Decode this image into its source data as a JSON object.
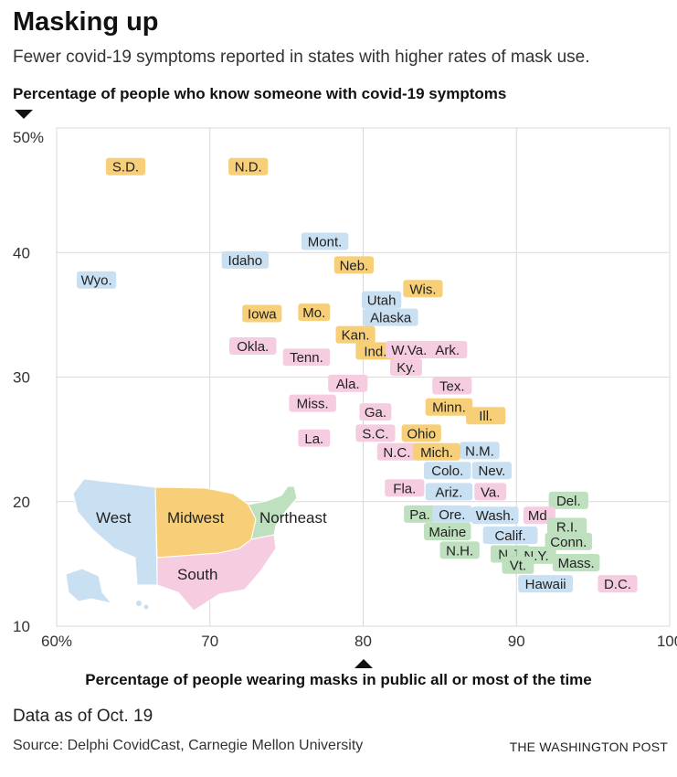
{
  "title": "Masking up",
  "subtitle": "Fewer covid-19 symptoms reported in states with higher rates of mask use.",
  "source": "Source: Delphi CovidCast, Carnegie Mellon University",
  "credit": "THE WASHINGTON POST",
  "note": "Data as of Oct. 19",
  "colors": {
    "West": "#c9dff2",
    "Midwest": "#f7cf79",
    "South": "#f6cde0",
    "Northeast": "#bfe0bf",
    "grid": "#d9d9d9",
    "axis": "#999999"
  },
  "chart_data": {
    "type": "scatter",
    "xlabel": "Percentage of people wearing masks in public all or most of the time",
    "ylabel": "Percentage of people who know someone with covid-19 symptoms",
    "xlim": [
      60,
      100
    ],
    "ylim": [
      10,
      50
    ],
    "xticks": [
      60,
      70,
      80,
      90,
      100
    ],
    "xtick_labels": [
      "60%",
      "70",
      "80",
      "90",
      "100"
    ],
    "yticks": [
      10,
      20,
      30,
      40,
      50
    ],
    "ytick_labels": [
      "10",
      "20",
      "30",
      "40",
      "50%"
    ],
    "grid": true,
    "regions": [
      "West",
      "Midwest",
      "South",
      "Northeast"
    ],
    "points": [
      {
        "label": "S.D.",
        "region": "Midwest",
        "x": 64.5,
        "y": 46.9
      },
      {
        "label": "N.D.",
        "region": "Midwest",
        "x": 72.5,
        "y": 46.9
      },
      {
        "label": "Mont.",
        "region": "West",
        "x": 77.5,
        "y": 40.9
      },
      {
        "label": "Idaho",
        "region": "West",
        "x": 72.3,
        "y": 39.4
      },
      {
        "label": "Neb.",
        "region": "Midwest",
        "x": 79.4,
        "y": 39.0
      },
      {
        "label": "Wyo.",
        "region": "West",
        "x": 62.6,
        "y": 37.8
      },
      {
        "label": "Wis.",
        "region": "Midwest",
        "x": 83.9,
        "y": 37.1
      },
      {
        "label": "Utah",
        "region": "West",
        "x": 81.2,
        "y": 36.2
      },
      {
        "label": "Iowa",
        "region": "Midwest",
        "x": 73.4,
        "y": 35.1
      },
      {
        "label": "Mo.",
        "region": "Midwest",
        "x": 76.8,
        "y": 35.2
      },
      {
        "label": "Alaska",
        "region": "West",
        "x": 81.8,
        "y": 34.8
      },
      {
        "label": "Kan.",
        "region": "Midwest",
        "x": 79.5,
        "y": 33.4
      },
      {
        "label": "Okla.",
        "region": "South",
        "x": 72.8,
        "y": 32.5
      },
      {
        "label": "Ind.",
        "region": "Midwest",
        "x": 80.8,
        "y": 32.1
      },
      {
        "label": "W.Va.",
        "region": "South",
        "x": 83.0,
        "y": 32.2
      },
      {
        "label": "Ark.",
        "region": "South",
        "x": 85.5,
        "y": 32.2
      },
      {
        "label": "Tenn.",
        "region": "South",
        "x": 76.3,
        "y": 31.6
      },
      {
        "label": "Ky.",
        "region": "South",
        "x": 82.8,
        "y": 30.8
      },
      {
        "label": "Ala.",
        "region": "South",
        "x": 79.0,
        "y": 29.5
      },
      {
        "label": "Tex.",
        "region": "South",
        "x": 85.8,
        "y": 29.3
      },
      {
        "label": "Miss.",
        "region": "South",
        "x": 76.7,
        "y": 27.9
      },
      {
        "label": "Minn.",
        "region": "Midwest",
        "x": 85.6,
        "y": 27.6
      },
      {
        "label": "Ga.",
        "region": "South",
        "x": 80.8,
        "y": 27.2
      },
      {
        "label": "Ill.",
        "region": "Midwest",
        "x": 88.0,
        "y": 26.9
      },
      {
        "label": "S.C.",
        "region": "South",
        "x": 80.8,
        "y": 25.5
      },
      {
        "label": "Ohio",
        "region": "Midwest",
        "x": 83.8,
        "y": 25.5
      },
      {
        "label": "La.",
        "region": "South",
        "x": 76.8,
        "y": 25.1
      },
      {
        "label": "N.M.",
        "region": "West",
        "x": 87.6,
        "y": 24.1
      },
      {
        "label": "N.C.",
        "region": "South",
        "x": 82.2,
        "y": 24.0
      },
      {
        "label": "Mich.",
        "region": "Midwest",
        "x": 84.8,
        "y": 24.0
      },
      {
        "label": "Colo.",
        "region": "West",
        "x": 85.5,
        "y": 22.5
      },
      {
        "label": "Nev.",
        "region": "West",
        "x": 88.4,
        "y": 22.5
      },
      {
        "label": "Fla.",
        "region": "South",
        "x": 82.7,
        "y": 21.1
      },
      {
        "label": "Ariz.",
        "region": "West",
        "x": 85.6,
        "y": 20.8
      },
      {
        "label": "Va.",
        "region": "South",
        "x": 88.3,
        "y": 20.8
      },
      {
        "label": "Del.",
        "region": "Northeast",
        "x": 93.4,
        "y": 20.1
      },
      {
        "label": "Pa.",
        "region": "Northeast",
        "x": 83.7,
        "y": 19.0
      },
      {
        "label": "Ore.",
        "region": "West",
        "x": 85.8,
        "y": 19.0
      },
      {
        "label": "Wash.",
        "region": "West",
        "x": 88.6,
        "y": 18.9
      },
      {
        "label": "Md.",
        "region": "South",
        "x": 91.5,
        "y": 18.9
      },
      {
        "label": "R.I.",
        "region": "Northeast",
        "x": 93.3,
        "y": 18.0
      },
      {
        "label": "Maine",
        "region": "Northeast",
        "x": 85.5,
        "y": 17.6
      },
      {
        "label": "Calif.",
        "region": "West",
        "x": 89.6,
        "y": 17.3
      },
      {
        "label": "Conn.",
        "region": "Northeast",
        "x": 93.4,
        "y": 16.8
      },
      {
        "label": "N.H.",
        "region": "Northeast",
        "x": 86.3,
        "y": 16.1
      },
      {
        "label": "N.J.",
        "region": "Northeast",
        "x": 89.6,
        "y": 15.8
      },
      {
        "label": "N.Y.",
        "region": "Northeast",
        "x": 91.3,
        "y": 15.7
      },
      {
        "label": "Vt.",
        "region": "Northeast",
        "x": 90.1,
        "y": 14.9
      },
      {
        "label": "Mass.",
        "region": "Northeast",
        "x": 93.9,
        "y": 15.1
      },
      {
        "label": "Hawaii",
        "region": "West",
        "x": 91.9,
        "y": 13.4
      },
      {
        "label": "D.C.",
        "region": "South",
        "x": 96.6,
        "y": 13.4
      }
    ]
  }
}
